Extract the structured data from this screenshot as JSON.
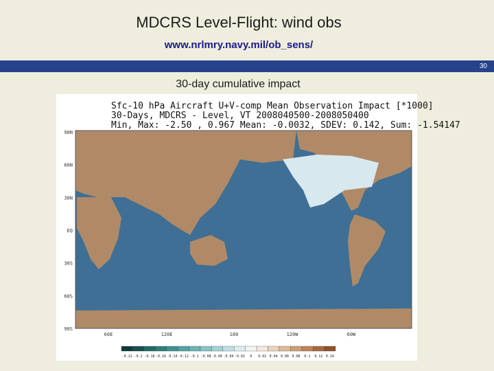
{
  "header": {
    "title": "MDCRS Level-Flight: wind obs",
    "url": "www.nrlmry.navy.mil/ob_sens/",
    "slide_number": "30"
  },
  "subtitle": "30-day cumulative impact",
  "figure": {
    "title_lines": [
      "Sfc-10 hPa Aircraft U+V-comp Mean Observation Impact [*1000]",
      "30-Days, MDCRS - Level, VT 2008040500-2008050400",
      "Min, Max: -2.50 , 0.967 Mean: -0.0032, SDEV: 0.142, Sum: -1.54147"
    ],
    "lat_labels": [
      "90N",
      "60N",
      "30N",
      "EQ",
      "30S",
      "60S",
      "90S"
    ],
    "lon_labels": [
      "60E",
      "120E",
      "180",
      "120W",
      "60W"
    ],
    "colorbar_labels": [
      "-0.22",
      "-0.2",
      "-0.18",
      "-0.16",
      "-0.14",
      "-0.12",
      "-0.1",
      "-0.08",
      "-0.06",
      "-0.04",
      "-0.02",
      "0",
      "0.02",
      "0.04",
      "0.06",
      "0.08",
      "0.1",
      "0.12",
      "0.14"
    ]
  }
}
